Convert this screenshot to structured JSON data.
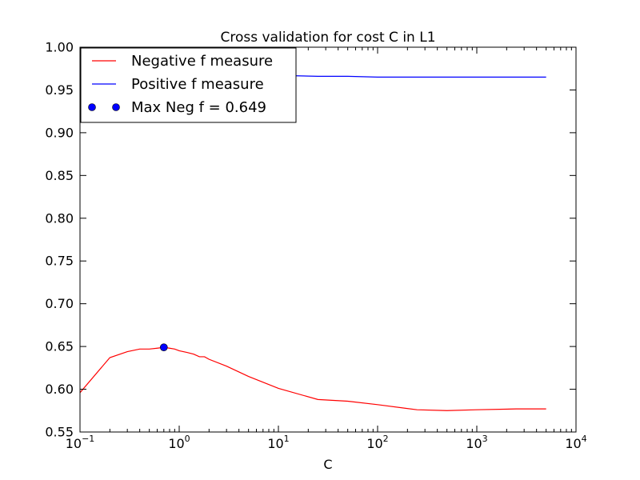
{
  "chart_data": {
    "type": "line",
    "title": "Cross validation for cost C in L1",
    "xlabel": "C",
    "ylabel": "",
    "xscale": "log",
    "xlim": [
      0.1,
      10000
    ],
    "ylim": [
      0.55,
      1.0
    ],
    "grid": false,
    "legend_position": "top-left",
    "x_ticks": [
      {
        "value": 0.1,
        "base": "10",
        "exp": "−1"
      },
      {
        "value": 1,
        "base": "10",
        "exp": "0"
      },
      {
        "value": 10,
        "base": "10",
        "exp": "1"
      },
      {
        "value": 100,
        "base": "10",
        "exp": "2"
      },
      {
        "value": 1000,
        "base": "10",
        "exp": "3"
      },
      {
        "value": 10000,
        "base": "10",
        "exp": "4"
      }
    ],
    "y_ticks": [
      {
        "value": 0.55,
        "label": "0.55"
      },
      {
        "value": 0.6,
        "label": "0.60"
      },
      {
        "value": 0.65,
        "label": "0.65"
      },
      {
        "value": 0.7,
        "label": "0.70"
      },
      {
        "value": 0.75,
        "label": "0.75"
      },
      {
        "value": 0.8,
        "label": "0.80"
      },
      {
        "value": 0.85,
        "label": "0.85"
      },
      {
        "value": 0.9,
        "label": "0.90"
      },
      {
        "value": 0.95,
        "label": "0.95"
      },
      {
        "value": 1.0,
        "label": "1.00"
      }
    ],
    "series": [
      {
        "name": "Negative f measure",
        "color": "#ff0000",
        "kind": "line",
        "x": [
          0.1,
          0.2,
          0.3,
          0.4,
          0.5,
          0.6,
          0.7,
          0.8,
          0.9,
          1.0,
          1.2,
          1.4,
          1.6,
          1.8,
          2,
          3,
          5,
          10,
          25,
          50,
          100,
          250,
          500,
          1000,
          2500,
          5000
        ],
        "y": [
          0.596,
          0.637,
          0.644,
          0.647,
          0.647,
          0.648,
          0.649,
          0.648,
          0.647,
          0.645,
          0.643,
          0.641,
          0.638,
          0.638,
          0.635,
          0.627,
          0.615,
          0.601,
          0.588,
          0.586,
          0.582,
          0.576,
          0.575,
          0.576,
          0.577,
          0.577
        ]
      },
      {
        "name": "Positive f measure",
        "color": "#0000ff",
        "kind": "line",
        "x": [
          0.1,
          0.2,
          0.3,
          0.5,
          1,
          2,
          5,
          10,
          25,
          50,
          100,
          250,
          500,
          1000,
          2500,
          5000
        ],
        "y": [
          0.955,
          0.965,
          0.967,
          0.968,
          0.968,
          0.968,
          0.968,
          0.967,
          0.966,
          0.966,
          0.965,
          0.965,
          0.965,
          0.965,
          0.965,
          0.965
        ]
      },
      {
        "name": "Max Neg f = 0.649",
        "color": "#0000ff",
        "kind": "marker",
        "x": [
          0.7
        ],
        "y": [
          0.649
        ]
      }
    ]
  }
}
